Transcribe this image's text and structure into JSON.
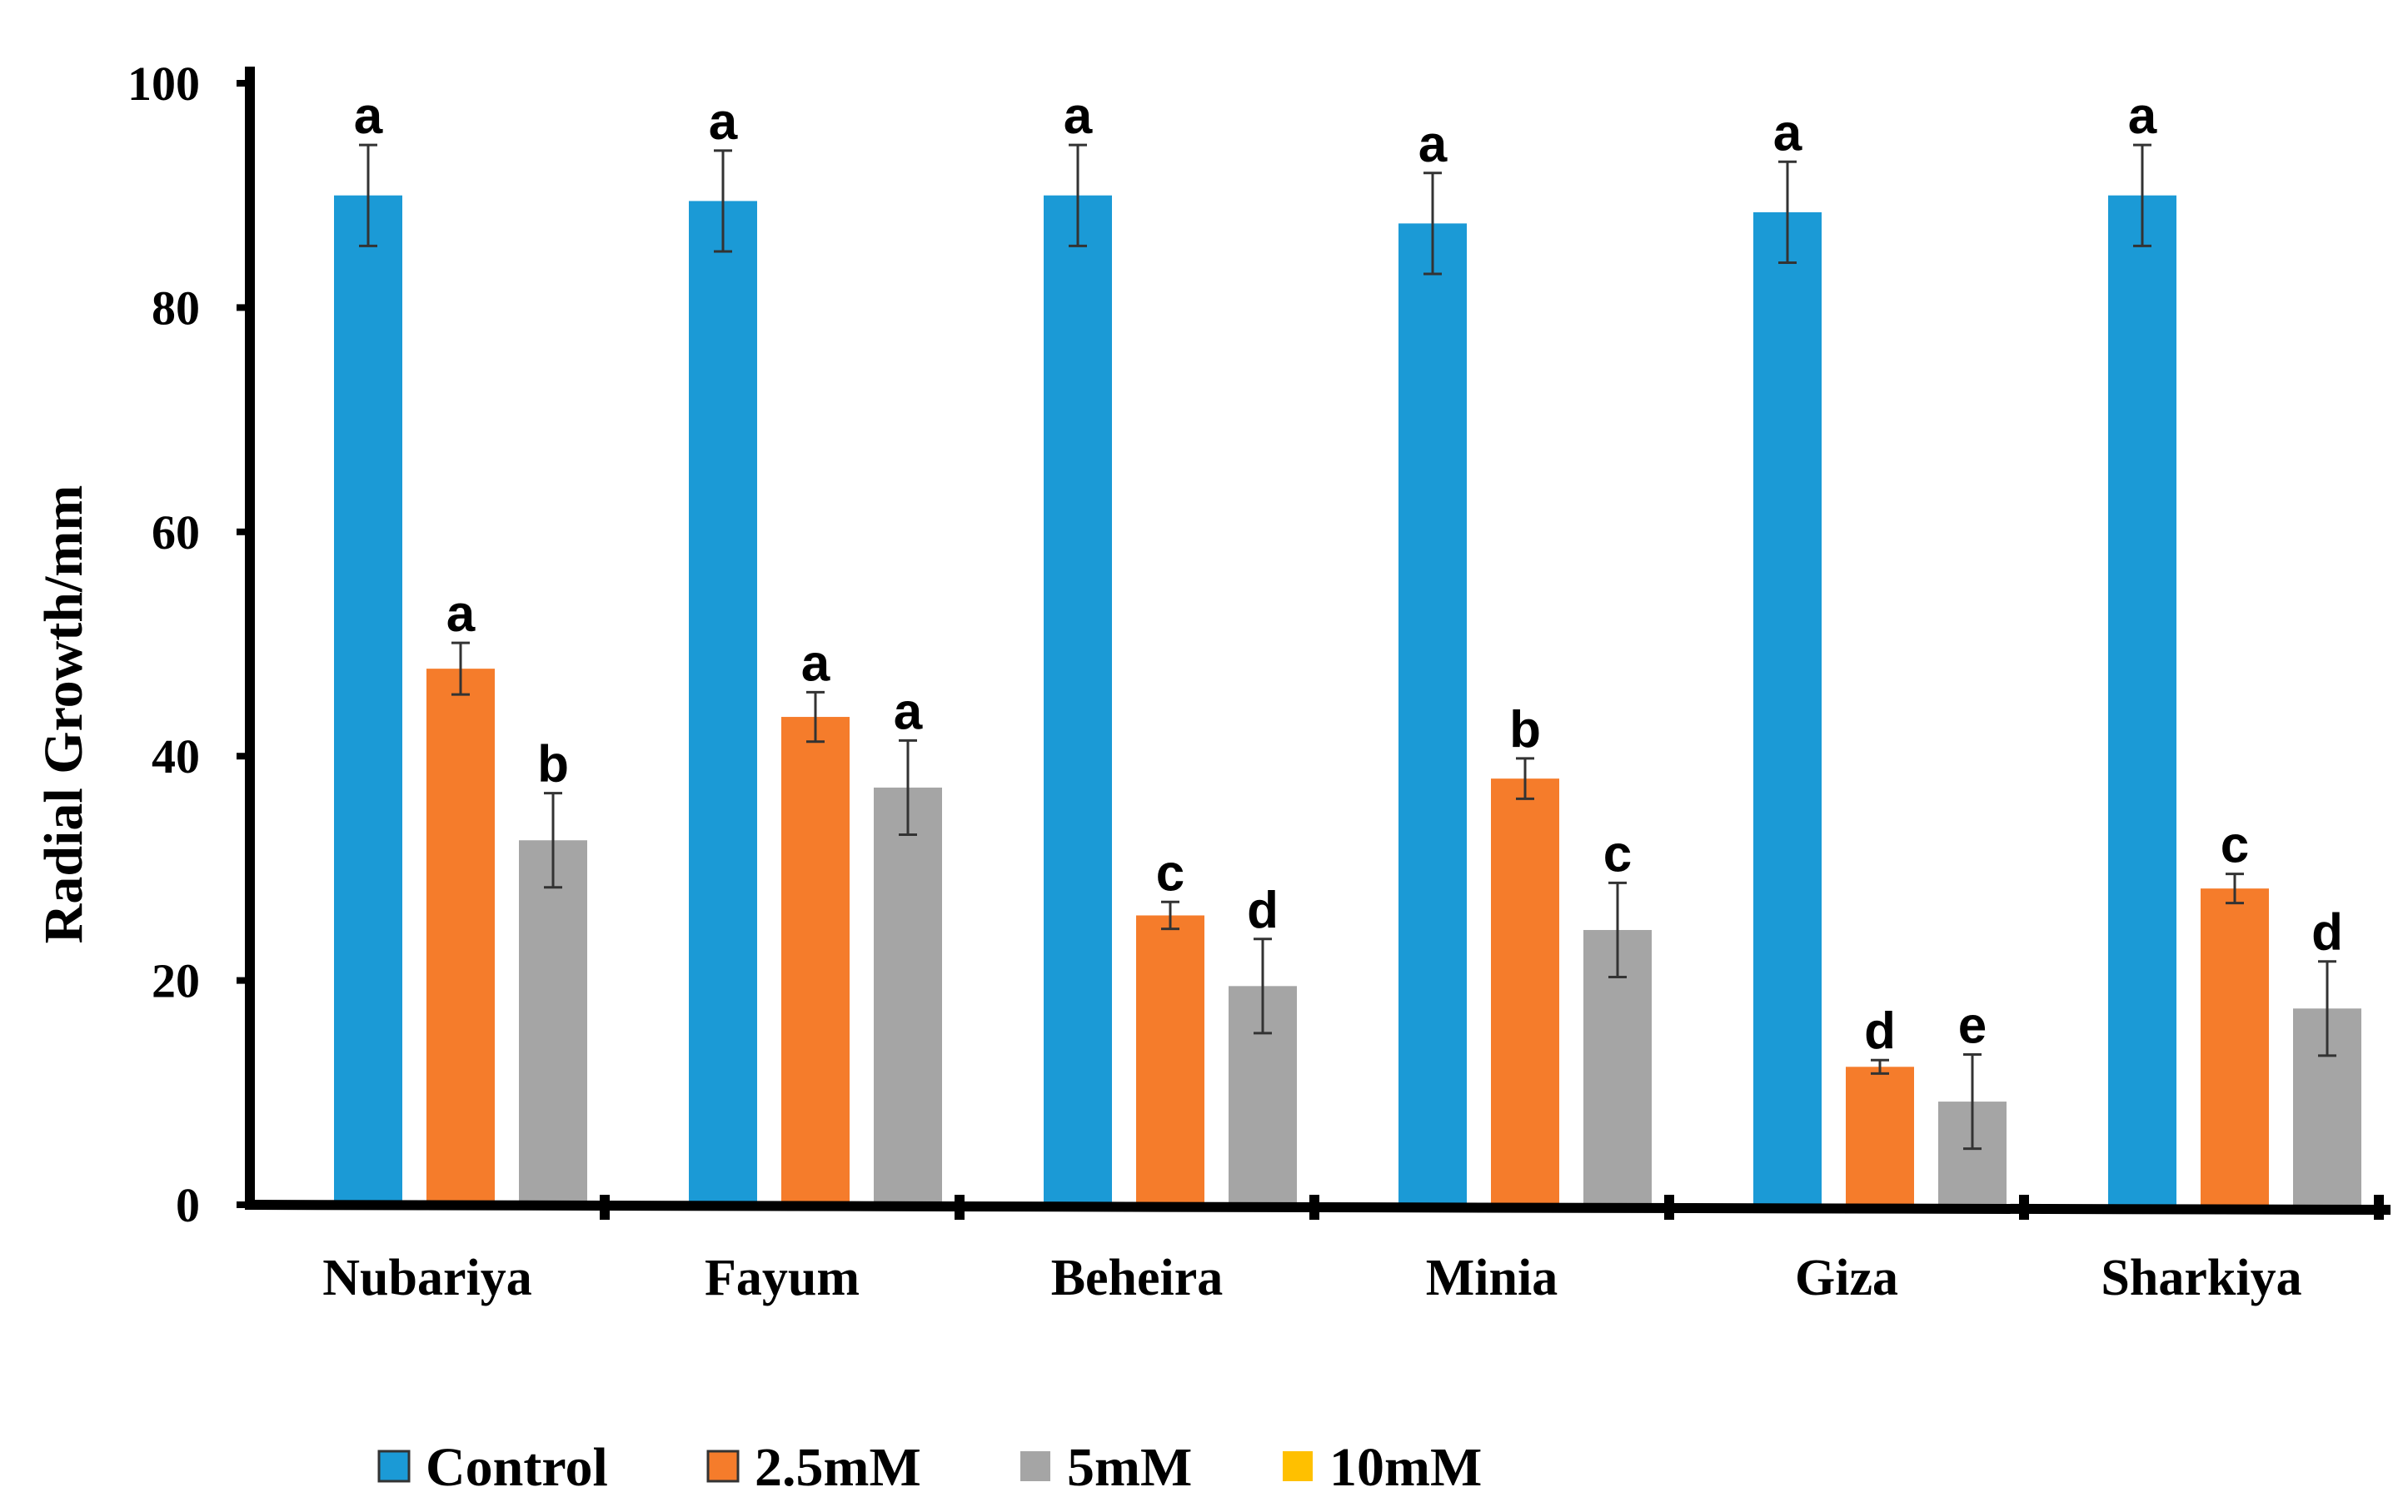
{
  "chart_data": {
    "type": "bar",
    "title": "",
    "xlabel": "",
    "ylabel": "Radial Growth/mm",
    "ylim": [
      0,
      100
    ],
    "yticks": [
      0,
      20,
      40,
      60,
      80,
      100
    ],
    "categories": [
      "Nubariya",
      "Fayum",
      "Beheira",
      "Minia",
      "Giza",
      "Sharkiya"
    ],
    "series": [
      {
        "name": "Control",
        "color": "#1B9AD6",
        "values": [
          90,
          89.5,
          90,
          87.5,
          88.5,
          90
        ],
        "errors": [
          4.5,
          4.5,
          4.5,
          4.5,
          4.5,
          4.5
        ],
        "labels": [
          "a",
          "a",
          "a",
          "a",
          "a",
          "a"
        ]
      },
      {
        "name": "2.5mM",
        "color": "#F57C2B",
        "values": [
          47.8,
          43.5,
          25.8,
          38,
          12.3,
          28.2
        ],
        "errors": [
          2.3,
          2.2,
          1.2,
          1.8,
          0.6,
          1.3
        ],
        "labels": [
          "a",
          "a",
          "c",
          "b",
          "d",
          "c"
        ]
      },
      {
        "name": "5mM",
        "color": "#A5A5A5",
        "values": [
          32.5,
          37.2,
          19.5,
          24.5,
          9.2,
          17.5
        ],
        "errors": [
          4.2,
          4.2,
          4.2,
          4.2,
          4.2,
          4.2
        ],
        "labels": [
          "b",
          "a",
          "d",
          "c",
          "e",
          "d"
        ]
      },
      {
        "name": "10mM",
        "color": "#FFC000",
        "values": [
          0,
          0,
          0,
          0,
          0,
          0
        ],
        "errors": [],
        "labels": []
      }
    ],
    "legend_position": "bottom"
  }
}
